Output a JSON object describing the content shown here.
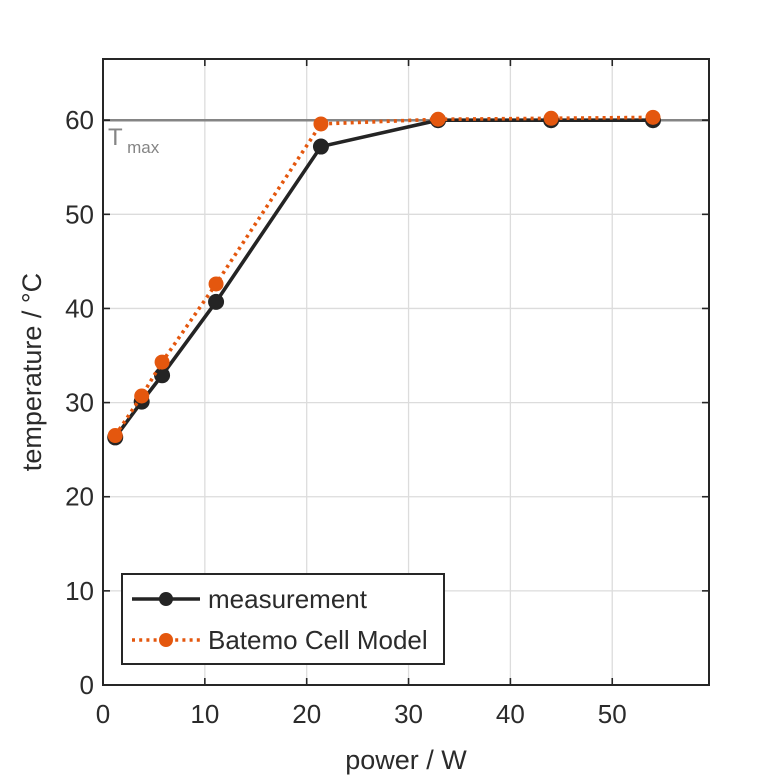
{
  "chart_data": {
    "type": "line",
    "title": "",
    "xlabel": "power / W",
    "ylabel": "temperature / °C",
    "xlim": [
      0,
      59.5
    ],
    "ylim": [
      0,
      66.5
    ],
    "x_ticks": [
      0,
      10,
      20,
      30,
      40,
      50
    ],
    "y_ticks": [
      0,
      10,
      20,
      30,
      40,
      50,
      60
    ],
    "grid": true,
    "legend_position": "bottom-left",
    "x": [
      1.2,
      3.8,
      5.8,
      11.1,
      21.4,
      32.9,
      44.0,
      54.0
    ],
    "series": [
      {
        "name": "measurement",
        "color": "#242424",
        "line_style": "solid",
        "marker": "circle",
        "values": [
          26.3,
          30.1,
          32.9,
          40.7,
          57.2,
          60.0,
          60.0,
          60.0
        ]
      },
      {
        "name": "Batemo Cell Model",
        "color": "#e4570e",
        "line_style": "dotted",
        "marker": "circle",
        "values": [
          26.5,
          30.7,
          34.3,
          42.6,
          59.6,
          60.1,
          60.2,
          60.3
        ]
      }
    ],
    "annotation": {
      "label_main": "T",
      "label_sub": "max",
      "value": 60,
      "color": "#858585"
    },
    "colors": {
      "grid": "#dcdcdc",
      "axis": "#262626",
      "text": "#2b2b2b"
    }
  }
}
